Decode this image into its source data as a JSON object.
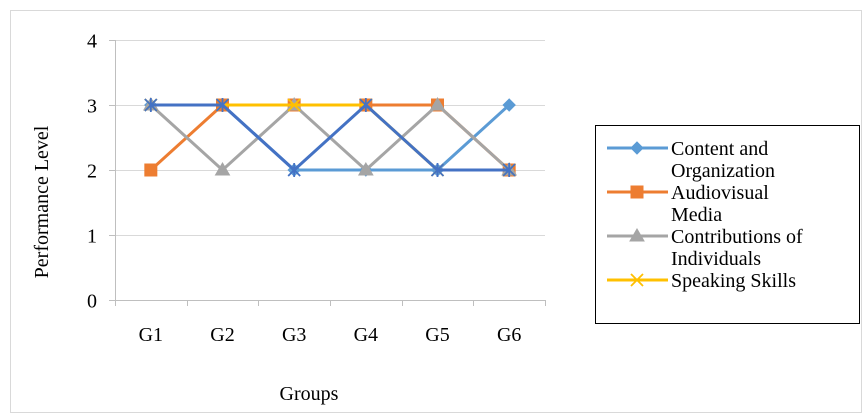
{
  "chart_data": {
    "type": "line",
    "title": "",
    "xlabel": "Groups",
    "ylabel": "Performance Level",
    "categories": [
      "G1",
      "G2",
      "G3",
      "G4",
      "G5",
      "G6"
    ],
    "y_ticks": [
      "0",
      "1",
      "2",
      "3",
      "4"
    ],
    "ylim": [
      0,
      4
    ],
    "grid": true,
    "legend_position": "right",
    "series": [
      {
        "name": "Content and Organization",
        "legend_lines": [
          "Content and",
          "Organization"
        ],
        "values": [
          3,
          3,
          2,
          2,
          2,
          3
        ],
        "color": "#5B9BD5",
        "marker": "diamond"
      },
      {
        "name": "Audiovisual Media",
        "legend_lines": [
          "Audiovisual",
          "Media"
        ],
        "values": [
          2,
          3,
          3,
          3,
          3,
          2
        ],
        "color": "#ED7D31",
        "marker": "square"
      },
      {
        "name": "Contributions of Individuals",
        "legend_lines": [
          "Contributions of",
          "Individuals"
        ],
        "values": [
          3,
          2,
          3,
          2,
          3,
          2
        ],
        "color": "#A5A5A5",
        "marker": "triangle"
      },
      {
        "name": "Speaking Skills",
        "legend_lines": [
          "Speaking Skills"
        ],
        "values": [
          3,
          3,
          3,
          3,
          2,
          2
        ],
        "color": "#FFC000",
        "marker": "x"
      },
      {
        "name": "",
        "legend_lines": [],
        "values": [
          3,
          3,
          2,
          3,
          2,
          2
        ],
        "color": "#4472C4",
        "marker": "star"
      }
    ]
  }
}
